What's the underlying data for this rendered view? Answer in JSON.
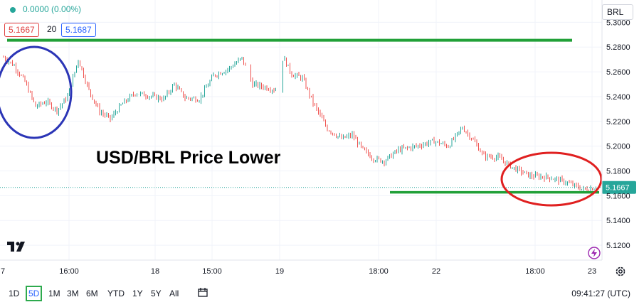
{
  "header": {
    "change": "0.0000 (0.00%)",
    "bid": "5.1667",
    "spread": "20",
    "ask": "5.1687",
    "currency": "BRL"
  },
  "caption": "USD/BRL Price Lower",
  "timeframes": [
    "1D",
    "5D",
    "1M",
    "3M",
    "6M",
    "YTD",
    "1Y",
    "5Y",
    "All"
  ],
  "active_timeframe": "5D",
  "clock": "09:41:27 (UTC)",
  "chart_data": {
    "type": "candlestick",
    "y_ticks": [
      "5.3000",
      "5.2800",
      "5.2600",
      "5.2400",
      "5.2200",
      "5.2000",
      "5.1800",
      "5.1600",
      "5.1400",
      "5.1200"
    ],
    "ylim": [
      5.108,
      5.318
    ],
    "x_ticks": [
      "7",
      "16:00",
      "18",
      "15:00",
      "19",
      "18:00",
      "22",
      "18:00",
      "23"
    ],
    "last_price": "5.1667",
    "price_path": [
      [
        0,
        5.274
      ],
      [
        20,
        5.265
      ],
      [
        35,
        5.252
      ],
      [
        50,
        5.232
      ],
      [
        65,
        5.236
      ],
      [
        80,
        5.229
      ],
      [
        95,
        5.24
      ],
      [
        110,
        5.27
      ],
      [
        125,
        5.245
      ],
      [
        140,
        5.228
      ],
      [
        155,
        5.222
      ],
      [
        170,
        5.233
      ],
      [
        190,
        5.243
      ],
      [
        215,
        5.24
      ],
      [
        230,
        5.238
      ],
      [
        245,
        5.25
      ],
      [
        260,
        5.239
      ],
      [
        280,
        5.238
      ],
      [
        300,
        5.257
      ],
      [
        320,
        5.262
      ],
      [
        340,
        5.271
      ],
      [
        355,
        5.25
      ],
      [
        370,
        5.248
      ],
      [
        390,
        5.245
      ],
      [
        398,
        5.272
      ],
      [
        410,
        5.258
      ],
      [
        425,
        5.255
      ],
      [
        440,
        5.235
      ],
      [
        460,
        5.214
      ],
      [
        480,
        5.206
      ],
      [
        495,
        5.209
      ],
      [
        510,
        5.197
      ],
      [
        525,
        5.19
      ],
      [
        540,
        5.188
      ],
      [
        560,
        5.197
      ],
      [
        585,
        5.2
      ],
      [
        610,
        5.204
      ],
      [
        630,
        5.2
      ],
      [
        650,
        5.215
      ],
      [
        665,
        5.205
      ],
      [
        680,
        5.192
      ],
      [
        700,
        5.191
      ],
      [
        720,
        5.183
      ],
      [
        745,
        5.176
      ],
      [
        770,
        5.175
      ],
      [
        795,
        5.171
      ],
      [
        820,
        5.165
      ],
      [
        840,
        5.1667
      ]
    ],
    "support_level": 5.1627,
    "resistance_level": 5.2855
  }
}
